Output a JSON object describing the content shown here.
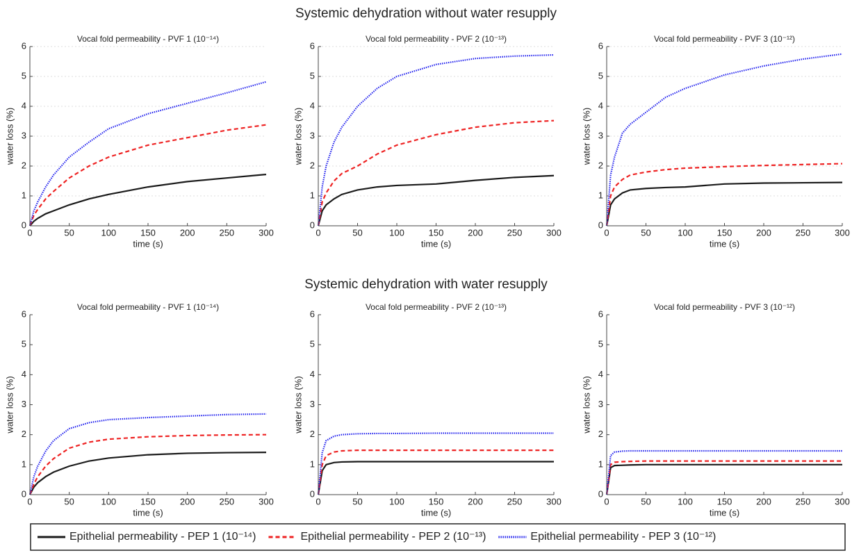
{
  "row_titles": [
    "Systemic dehydration without water resupply",
    "Systemic dehydration with water resupply"
  ],
  "chart_data": [
    {
      "type": "line",
      "title": "Vocal fold permeability - PVF 1 (10⁻¹⁴)",
      "xlabel": "time (s)",
      "ylabel": "water loss (%)",
      "x": [
        0,
        5,
        10,
        20,
        30,
        50,
        75,
        100,
        150,
        200,
        250,
        300
      ],
      "xlim": [
        0,
        300
      ],
      "xticks": [
        0,
        50,
        100,
        150,
        200,
        250,
        300
      ],
      "ylim": [
        0,
        6
      ],
      "yticks": [
        0,
        1,
        2,
        3,
        4,
        5,
        6
      ],
      "grid": true,
      "series": [
        {
          "name": "Epithelial permeability - PEP 1 (10⁻¹⁴)",
          "color": "#1a1a1a",
          "style": "solid",
          "values": [
            0,
            0.15,
            0.25,
            0.4,
            0.5,
            0.7,
            0.9,
            1.05,
            1.3,
            1.48,
            1.6,
            1.72
          ]
        },
        {
          "name": "Epithelial permeability - PEP 2 (10⁻¹³)",
          "color": "#ee2222",
          "style": "dashed",
          "values": [
            0,
            0.35,
            0.55,
            0.9,
            1.15,
            1.6,
            2.0,
            2.3,
            2.7,
            2.95,
            3.2,
            3.38
          ]
        },
        {
          "name": "Epithelial permeability - PEP 3 (10⁻¹²)",
          "color": "#2222ee",
          "style": "dotted",
          "values": [
            0,
            0.5,
            0.8,
            1.3,
            1.7,
            2.3,
            2.8,
            3.25,
            3.75,
            4.1,
            4.45,
            4.82
          ]
        }
      ]
    },
    {
      "type": "line",
      "title": "Vocal fold permeability - PVF 2 (10⁻¹³)",
      "xlabel": "time (s)",
      "ylabel": "water loss (%)",
      "x": [
        0,
        5,
        10,
        20,
        30,
        50,
        75,
        100,
        150,
        200,
        250,
        300
      ],
      "xlim": [
        0,
        300
      ],
      "xticks": [
        0,
        50,
        100,
        150,
        200,
        250,
        300
      ],
      "ylim": [
        0,
        6
      ],
      "yticks": [
        0,
        1,
        2,
        3,
        4,
        5,
        6
      ],
      "grid": true,
      "series": [
        {
          "name": "Epithelial permeability - PEP 1 (10⁻¹⁴)",
          "color": "#1a1a1a",
          "style": "solid",
          "values": [
            0,
            0.5,
            0.7,
            0.9,
            1.05,
            1.2,
            1.3,
            1.35,
            1.4,
            1.52,
            1.62,
            1.68
          ]
        },
        {
          "name": "Epithelial permeability - PEP 2 (10⁻¹³)",
          "color": "#ee2222",
          "style": "dashed",
          "values": [
            0,
            0.8,
            1.1,
            1.5,
            1.75,
            2.0,
            2.4,
            2.7,
            3.05,
            3.3,
            3.45,
            3.52
          ]
        },
        {
          "name": "Epithelial permeability - PEP 3 (10⁻¹²)",
          "color": "#2222ee",
          "style": "dotted",
          "values": [
            0,
            1.3,
            2.0,
            2.8,
            3.3,
            4.0,
            4.6,
            5.0,
            5.4,
            5.6,
            5.68,
            5.72
          ]
        }
      ]
    },
    {
      "type": "line",
      "title": "Vocal fold permeability - PVF 3 (10⁻¹²)",
      "xlabel": "time (s)",
      "ylabel": "water loss (%)",
      "x": [
        0,
        5,
        10,
        20,
        30,
        50,
        75,
        100,
        150,
        200,
        250,
        300
      ],
      "xlim": [
        0,
        300
      ],
      "xticks": [
        0,
        50,
        100,
        150,
        200,
        250,
        300
      ],
      "ylim": [
        0,
        6
      ],
      "yticks": [
        0,
        1,
        2,
        3,
        4,
        5,
        6
      ],
      "grid": true,
      "series": [
        {
          "name": "Epithelial permeability - PEP 1 (10⁻¹⁴)",
          "color": "#1a1a1a",
          "style": "solid",
          "values": [
            0,
            0.7,
            0.9,
            1.1,
            1.2,
            1.25,
            1.28,
            1.3,
            1.4,
            1.43,
            1.44,
            1.45
          ]
        },
        {
          "name": "Epithelial permeability - PEP 2 (10⁻¹³)",
          "color": "#ee2222",
          "style": "dashed",
          "values": [
            0,
            1.0,
            1.3,
            1.55,
            1.7,
            1.8,
            1.88,
            1.93,
            1.98,
            2.02,
            2.05,
            2.08
          ]
        },
        {
          "name": "Epithelial permeability - PEP 3 (10⁻¹²)",
          "color": "#2222ee",
          "style": "dotted",
          "values": [
            0,
            1.7,
            2.3,
            3.1,
            3.4,
            3.8,
            4.3,
            4.6,
            5.05,
            5.35,
            5.58,
            5.75
          ]
        }
      ]
    },
    {
      "type": "line",
      "title": "Vocal fold permeability - PVF 1 (10⁻¹⁴)",
      "xlabel": "time (s)",
      "ylabel": "water loss (%)",
      "x": [
        0,
        5,
        10,
        20,
        30,
        50,
        75,
        100,
        150,
        200,
        250,
        300
      ],
      "xlim": [
        0,
        300
      ],
      "xticks": [
        0,
        50,
        100,
        150,
        200,
        250,
        300
      ],
      "ylim": [
        0,
        6
      ],
      "yticks": [
        0,
        1,
        2,
        3,
        4,
        5,
        6
      ],
      "grid": false,
      "series": [
        {
          "name": "Epithelial permeability - PEP 1 (10⁻¹⁴)",
          "color": "#1a1a1a",
          "style": "solid",
          "values": [
            0,
            0.25,
            0.4,
            0.6,
            0.75,
            0.95,
            1.12,
            1.22,
            1.33,
            1.38,
            1.4,
            1.41
          ]
        },
        {
          "name": "Epithelial permeability - PEP 2 (10⁻¹³)",
          "color": "#ee2222",
          "style": "dashed",
          "values": [
            0,
            0.35,
            0.6,
            0.95,
            1.2,
            1.55,
            1.75,
            1.85,
            1.93,
            1.97,
            1.99,
            2.0
          ]
        },
        {
          "name": "Epithelial permeability - PEP 3 (10⁻¹²)",
          "color": "#2222ee",
          "style": "dotted",
          "values": [
            0,
            0.6,
            0.95,
            1.45,
            1.8,
            2.2,
            2.4,
            2.5,
            2.57,
            2.62,
            2.67,
            2.69
          ]
        }
      ]
    },
    {
      "type": "line",
      "title": "Vocal fold permeability - PVF 2 (10⁻¹³)",
      "xlabel": "time (s)",
      "ylabel": "water loss (%)",
      "x": [
        0,
        5,
        10,
        20,
        30,
        50,
        75,
        100,
        150,
        200,
        250,
        300
      ],
      "xlim": [
        0,
        300
      ],
      "xticks": [
        0,
        50,
        100,
        150,
        200,
        250,
        300
      ],
      "ylim": [
        0,
        6
      ],
      "yticks": [
        0,
        1,
        2,
        3,
        4,
        5,
        6
      ],
      "grid": false,
      "series": [
        {
          "name": "Epithelial permeability - PEP 1 (10⁻¹⁴)",
          "color": "#1a1a1a",
          "style": "solid",
          "values": [
            0,
            0.8,
            1.0,
            1.07,
            1.09,
            1.1,
            1.1,
            1.1,
            1.1,
            1.1,
            1.1,
            1.1
          ]
        },
        {
          "name": "Epithelial permeability - PEP 2 (10⁻¹³)",
          "color": "#ee2222",
          "style": "dashed",
          "values": [
            0,
            1.0,
            1.3,
            1.42,
            1.46,
            1.48,
            1.48,
            1.48,
            1.48,
            1.48,
            1.48,
            1.48
          ]
        },
        {
          "name": "Epithelial permeability - PEP 3 (10⁻¹²)",
          "color": "#2222ee",
          "style": "dotted",
          "values": [
            0,
            1.4,
            1.8,
            1.95,
            2.0,
            2.03,
            2.04,
            2.04,
            2.05,
            2.05,
            2.05,
            2.05
          ]
        }
      ]
    },
    {
      "type": "line",
      "title": "Vocal fold permeability - PVF 3 (10⁻¹²)",
      "xlabel": "time (s)",
      "ylabel": "water loss (%)",
      "x": [
        0,
        5,
        10,
        20,
        30,
        50,
        75,
        100,
        150,
        200,
        250,
        300
      ],
      "xlim": [
        0,
        300
      ],
      "xticks": [
        0,
        50,
        100,
        150,
        200,
        250,
        300
      ],
      "ylim": [
        0,
        6
      ],
      "yticks": [
        0,
        1,
        2,
        3,
        4,
        5,
        6
      ],
      "grid": false,
      "series": [
        {
          "name": "Epithelial permeability - PEP 1 (10⁻¹⁴)",
          "color": "#1a1a1a",
          "style": "solid",
          "values": [
            0,
            0.9,
            0.97,
            0.98,
            0.99,
            1.0,
            1.0,
            1.0,
            1.0,
            1.0,
            1.0,
            1.0
          ]
        },
        {
          "name": "Epithelial permeability - PEP 2 (10⁻¹³)",
          "color": "#ee2222",
          "style": "dashed",
          "values": [
            0,
            1.0,
            1.08,
            1.1,
            1.11,
            1.12,
            1.12,
            1.12,
            1.12,
            1.12,
            1.12,
            1.12
          ]
        },
        {
          "name": "Epithelial permeability - PEP 3 (10⁻¹²)",
          "color": "#2222ee",
          "style": "dotted",
          "values": [
            0,
            1.3,
            1.42,
            1.45,
            1.46,
            1.46,
            1.46,
            1.46,
            1.46,
            1.46,
            1.46,
            1.46
          ]
        }
      ]
    }
  ]
}
